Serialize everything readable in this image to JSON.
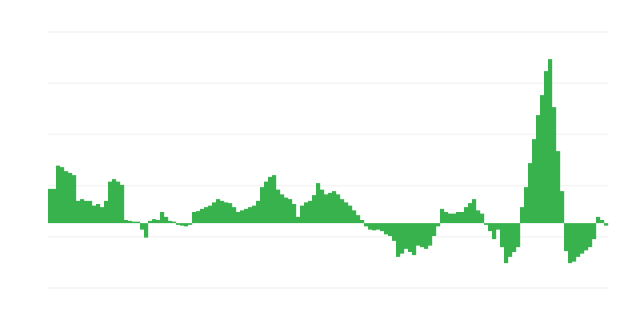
{
  "chart_data": {
    "type": "bar",
    "color": "#37b24d",
    "grid": true,
    "gridColor": "#ebebeb",
    "ylim": [
      -81,
      239
    ],
    "yticks": [
      -81,
      -17,
      47,
      111,
      175,
      239
    ],
    "values": [
      43,
      43,
      72,
      70,
      65,
      63,
      60,
      28,
      30,
      28,
      28,
      22,
      24,
      20,
      28,
      52,
      55,
      52,
      48,
      4,
      3,
      2,
      2,
      -8,
      -18,
      3,
      5,
      4,
      14,
      8,
      3,
      2,
      -2,
      -3,
      -4,
      -2,
      14,
      15,
      18,
      20,
      22,
      26,
      30,
      28,
      26,
      25,
      20,
      14,
      16,
      18,
      20,
      22,
      28,
      45,
      52,
      58,
      60,
      42,
      36,
      32,
      30,
      24,
      8,
      22,
      26,
      28,
      35,
      50,
      42,
      36,
      38,
      40,
      36,
      30,
      26,
      22,
      16,
      10,
      4,
      -4,
      -8,
      -9,
      -8,
      -10,
      -14,
      -16,
      -22,
      -42,
      -38,
      -32,
      -36,
      -40,
      -28,
      -30,
      -32,
      -28,
      -16,
      -4,
      18,
      14,
      12,
      12,
      14,
      14,
      20,
      25,
      30,
      16,
      12,
      -2,
      -10,
      -20,
      -8,
      -30,
      -50,
      -42,
      -36,
      -30,
      20,
      45,
      75,
      105,
      135,
      160,
      190,
      205,
      145,
      90,
      40,
      -35,
      -50,
      -48,
      -42,
      -38,
      -34,
      -30,
      -20,
      8,
      4,
      -3
    ]
  }
}
